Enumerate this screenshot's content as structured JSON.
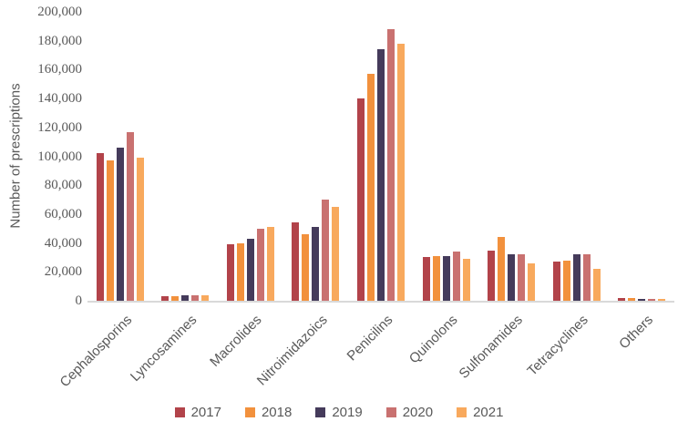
{
  "chart_data": {
    "type": "bar",
    "title": "",
    "xlabel": "",
    "ylabel": "Number of prescriptions",
    "ylim": [
      0,
      200000
    ],
    "ytick_step": 20000,
    "ytick_labels": [
      "0",
      "20,000",
      "40,000",
      "60,000",
      "80,000",
      "100,000",
      "120,000",
      "140,000",
      "160,000",
      "180,000",
      "200,000"
    ],
    "grid": false,
    "legend_position": "bottom",
    "categories": [
      "Cephalosporins",
      "Lyncosamines",
      "Macrolides",
      "Nitroimidazoics",
      "Penicilins",
      "Quinolons",
      "Sulfonamides",
      "Tetracyclines",
      "Others"
    ],
    "series": [
      {
        "name": "2017",
        "color": "#b2434a",
        "values": [
          102000,
          3000,
          39000,
          54000,
          140000,
          30000,
          35000,
          27000,
          2000
        ]
      },
      {
        "name": "2018",
        "color": "#f2913d",
        "values": [
          97000,
          3000,
          40000,
          46000,
          157000,
          31000,
          44000,
          28000,
          2000
        ]
      },
      {
        "name": "2019",
        "color": "#453b5b",
        "values": [
          106000,
          4000,
          43000,
          51000,
          174000,
          31000,
          32000,
          32000,
          1500
        ]
      },
      {
        "name": "2020",
        "color": "#c97170",
        "values": [
          117000,
          4000,
          50000,
          70000,
          188000,
          34000,
          32000,
          32000,
          1500
        ]
      },
      {
        "name": "2021",
        "color": "#f8a95d",
        "values": [
          99000,
          4000,
          51000,
          65000,
          178000,
          29000,
          26000,
          22000,
          1000
        ]
      }
    ],
    "text_color": "#595959",
    "axis_color": "#d9d9d9"
  }
}
